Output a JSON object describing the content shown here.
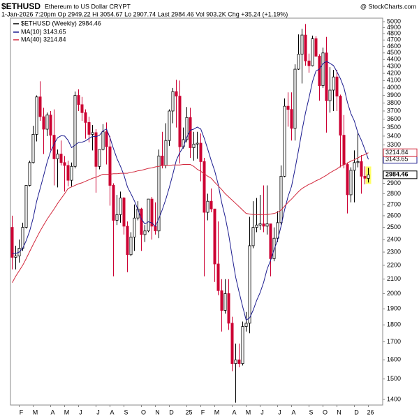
{
  "chart_data": {
    "type": "candlestick",
    "title": "$ETHUSD",
    "subtitle": "Ethereum to US Dollar  CRYPT",
    "source": "@ StockCharts.com",
    "info": "1-Jan-2026 7:20pm    Op 2949.22   Hi 3054.67   Lo 2907.74   Last 2984.46   Vol 903.2K   Chg +35.24 (+1.19%)",
    "candle_name": "$ETHUSD (Weekly) 2984.46",
    "up_color": "#000000",
    "down_color": "#cc0033",
    "highlight_color": "#ffff66",
    "log_scale": true,
    "ylim": [
      1374,
      5059
    ],
    "yticks": [
      1400,
      1500,
      1600,
      1700,
      1800,
      1900,
      2000,
      2100,
      2200,
      2300,
      2400,
      2500,
      2600,
      2700,
      2800,
      2900,
      3300,
      3400,
      3500,
      3600,
      3700,
      3800,
      3900,
      4000,
      4100,
      4200,
      4300,
      4400,
      4500,
      4600,
      4700,
      4800,
      4900,
      5000
    ],
    "categories": [
      null,
      null,
      "F",
      null,
      null,
      null,
      "M",
      null,
      null,
      null,
      null,
      "A",
      null,
      null,
      null,
      "M",
      null,
      null,
      null,
      "J",
      null,
      null,
      null,
      null,
      "J",
      null,
      null,
      null,
      "A",
      null,
      null,
      null,
      "S",
      null,
      null,
      null,
      null,
      "O",
      null,
      null,
      null,
      "N",
      null,
      null,
      null,
      "D",
      null,
      null,
      null,
      null,
      "25",
      null,
      null,
      null,
      "F",
      null,
      null,
      null,
      "M",
      null,
      null,
      null,
      null,
      "A",
      null,
      null,
      null,
      "M",
      null,
      null,
      null,
      "J",
      null,
      null,
      null,
      null,
      "J",
      null,
      null,
      null,
      "A",
      null,
      null,
      null,
      null,
      "S",
      null,
      null,
      null,
      "O",
      null,
      null,
      null,
      "N",
      null,
      null,
      null,
      null,
      "D",
      null,
      null,
      null,
      "26"
    ],
    "open": [
      2500,
      2260,
      2270,
      2330,
      2500,
      2880,
      3110,
      3420,
      3880,
      3630,
      3480,
      3650,
      3410,
      3150,
      3200,
      3110,
      3080,
      2930,
      3070,
      3900,
      3780,
      3680,
      3560,
      3420,
      3440,
      3070,
      3250,
      3450,
      3280,
      2880,
      2560,
      2610,
      2760,
      2510,
      2280,
      2420,
      2580,
      2660,
      2440,
      2470,
      2750,
      2510,
      2470,
      3180,
      3080,
      3350,
      3700,
      3950,
      3890,
      3280,
      3360,
      3620,
      3270,
      3310,
      3320,
      3120,
      2630,
      2730,
      2660,
      2210,
      2020,
      1890,
      2000,
      1810,
      1580,
      1600,
      1580,
      1790,
      1810,
      2350,
      2500,
      2520,
      2530,
      2510,
      2530,
      2250,
      2410,
      2540,
      2970,
      3760,
      3720,
      3490,
      4260,
      4480,
      4780,
      4380,
      4310,
      4720,
      4450,
      4030,
      4500,
      3830,
      3970,
      4150,
      3890,
      3410,
      3090,
      2790,
      3030,
      3110,
      3120,
      2970,
      2949.22
    ],
    "high": [
      2600,
      2350,
      2400,
      2540,
      2880,
      3130,
      3520,
      3900,
      4090,
      3740,
      3680,
      3700,
      3720,
      3250,
      3350,
      3180,
      3130,
      3110,
      3950,
      3980,
      3880,
      3720,
      3630,
      3530,
      3480,
      3250,
      3540,
      3560,
      3400,
      2900,
      2790,
      2820,
      2770,
      2550,
      2460,
      2700,
      2730,
      2670,
      2520,
      2750,
      2770,
      2720,
      3250,
      3450,
      3550,
      3720,
      4000,
      4110,
      4100,
      3500,
      3750,
      3740,
      3450,
      3450,
      3430,
      3160,
      2800,
      2850,
      2660,
      2550,
      2100,
      2100,
      2100,
      1850,
      1690,
      1690,
      1820,
      1880,
      2590,
      2730,
      2760,
      2790,
      2880,
      2880,
      2530,
      2500,
      2640,
      3080,
      3860,
      3940,
      3940,
      4330,
      4790,
      4880,
      4960,
      4490,
      4770,
      4760,
      4480,
      4580,
      4750,
      4290,
      4250,
      4250,
      3910,
      3650,
      3110,
      3060,
      3240,
      3450,
      3190,
      3070,
      3054.67
    ],
    "low": [
      2170,
      2170,
      2220,
      2310,
      2490,
      2870,
      3100,
      3340,
      3580,
      3200,
      3400,
      3240,
      2880,
      2860,
      3080,
      2820,
      2870,
      2870,
      3050,
      3700,
      3580,
      3370,
      3330,
      3240,
      2810,
      3040,
      3240,
      3090,
      2690,
      2120,
      2520,
      2540,
      2440,
      2150,
      2270,
      2310,
      2560,
      2310,
      2380,
      2460,
      2400,
      2440,
      2410,
      3050,
      3050,
      3290,
      3550,
      3500,
      3100,
      3260,
      3330,
      3160,
      3130,
      3150,
      2920,
      2120,
      2560,
      2630,
      2080,
      1990,
      1760,
      1870,
      1770,
      1540,
      1385,
      1560,
      1570,
      1760,
      1750,
      2330,
      2460,
      2480,
      2460,
      2440,
      2120,
      2230,
      2380,
      2520,
      2960,
      3510,
      3350,
      3350,
      4250,
      4060,
      4310,
      4210,
      4300,
      4450,
      3830,
      4000,
      3440,
      3680,
      3700,
      3700,
      3060,
      3050,
      2620,
      2720,
      2720,
      3060,
      2800,
      2890,
      2907.74
    ],
    "close": [
      2260,
      2270,
      2330,
      2500,
      2880,
      3110,
      3420,
      3880,
      3630,
      3480,
      3650,
      3410,
      3150,
      3200,
      3110,
      3080,
      2930,
      3070,
      3900,
      3780,
      3680,
      3560,
      3420,
      3440,
      3070,
      3250,
      3450,
      3280,
      2880,
      2560,
      2610,
      2760,
      2510,
      2280,
      2420,
      2580,
      2660,
      2440,
      2470,
      2750,
      2510,
      2470,
      3180,
      3080,
      3350,
      3700,
      3950,
      3890,
      3280,
      3360,
      3620,
      3270,
      3310,
      3320,
      3120,
      2630,
      2730,
      2660,
      2210,
      2020,
      1890,
      2000,
      1810,
      1580,
      1600,
      1580,
      1790,
      1810,
      2350,
      2500,
      2520,
      2530,
      2510,
      2530,
      2250,
      2410,
      2540,
      2970,
      3760,
      3720,
      3490,
      4260,
      4480,
      4780,
      4380,
      4310,
      4720,
      4450,
      4030,
      4500,
      3830,
      3970,
      4150,
      3890,
      3410,
      3090,
      2790,
      3030,
      3110,
      3120,
      2970,
      2950,
      2984.46
    ],
    "series": [
      {
        "name": "MA(10) 3143.65",
        "color": "#1c1c8f",
        "values": [
          2290,
          2290,
          2300,
          2330,
          2390,
          2470,
          2580,
          2730,
          2850,
          2976,
          3115,
          3229,
          3311,
          3381,
          3404,
          3401,
          3352,
          3271,
          3298,
          3328,
          3331,
          3346,
          3373,
          3397,
          3393,
          3410,
          3462,
          3483,
          3381,
          3259,
          3152,
          3072,
          2981,
          2865,
          2800,
          2733,
          2654,
          2570,
          2529,
          2548,
          2538,
          2509,
          2576,
          2656,
          2749,
          2861,
          2990,
          3135,
          3216,
          3277,
          3388,
          3468,
          3481,
          3505,
          3482,
          3375,
          3253,
          3130,
          3023,
          2889,
          2716,
          2589,
          2439,
          2265,
          2113,
          2008,
          1914,
          1829,
          1843,
          1891,
          1954,
          2007,
          2077,
          2172,
          2237,
          2320,
          2395,
          2511,
          2652,
          2774,
          2871,
          3044,
          3241,
          3466,
          3679,
          3869,
          4087,
          4235,
          4262,
          4340,
          4374,
          4345,
          4312,
          4223,
          4125,
          4003,
          3810,
          3668,
          3576,
          3438,
          3352,
          3250,
          3143.65
        ]
      },
      {
        "name": "MA(40) 3214.84",
        "color": "#d2283c",
        "values": [
          2075,
          2120,
          2160,
          2200,
          2250,
          2305,
          2360,
          2415,
          2470,
          2520,
          2570,
          2615,
          2660,
          2710,
          2755,
          2800,
          2850,
          2865,
          2880,
          2895,
          2905,
          2920,
          2935,
          2950,
          2960,
          2975,
          2990,
          2990,
          2990,
          2995,
          2995,
          3000,
          3000,
          3000,
          3010,
          3015,
          3025,
          3030,
          3040,
          3050,
          3055,
          3065,
          3070,
          3080,
          3080,
          3080,
          3085,
          3085,
          3085,
          3090,
          3090,
          3090,
          3070,
          3040,
          3020,
          2995,
          2970,
          2950,
          2910,
          2875,
          2840,
          2800,
          2770,
          2740,
          2710,
          2680,
          2650,
          2620,
          2615,
          2610,
          2610,
          2610,
          2610,
          2610,
          2615,
          2620,
          2630,
          2650,
          2685,
          2720,
          2750,
          2785,
          2820,
          2850,
          2870,
          2890,
          2905,
          2925,
          2940,
          2960,
          2980,
          3005,
          3025,
          3045,
          3070,
          3090,
          3105,
          3125,
          3140,
          3160,
          3180,
          3195,
          3214.84
        ]
      }
    ]
  }
}
